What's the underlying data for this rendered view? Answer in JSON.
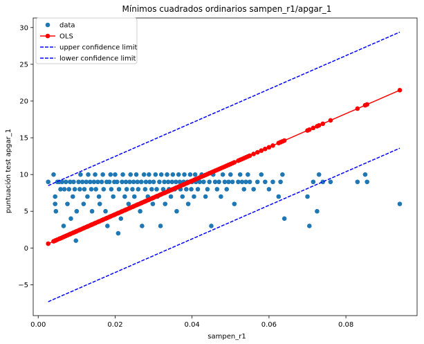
{
  "chart_data": {
    "type": "scatter",
    "title": "Mínimos cuadrados ordinarios sampen_r1/apgar_1",
    "xlabel": "sampen_r1",
    "ylabel": "puntuación test apgar_1",
    "xlim": [
      -0.0013,
      0.0985
    ],
    "ylim": [
      -9.2,
      31.3
    ],
    "xticks": [
      0.0,
      0.02,
      0.04,
      0.06,
      0.08
    ],
    "xtick_labels": [
      "0.00",
      "0.02",
      "0.04",
      "0.06",
      "0.08"
    ],
    "yticks": [
      -5,
      0,
      5,
      10,
      15,
      20,
      25,
      30
    ],
    "ytick_labels": [
      "−5",
      "0",
      "5",
      "10",
      "15",
      "20",
      "25",
      "30"
    ],
    "legend_position": "top-left",
    "series": [
      {
        "name": "data",
        "kind": "scatter",
        "color": "#1f77b4",
        "points": [
          [
            0.0026,
            9
          ],
          [
            0.004,
            10
          ],
          [
            0.0044,
            7
          ],
          [
            0.0044,
            6
          ],
          [
            0.0046,
            5
          ],
          [
            0.005,
            9
          ],
          [
            0.0055,
            9
          ],
          [
            0.0058,
            8
          ],
          [
            0.0062,
            9
          ],
          [
            0.0066,
            3
          ],
          [
            0.0068,
            8
          ],
          [
            0.0072,
            9
          ],
          [
            0.0076,
            6
          ],
          [
            0.008,
            8
          ],
          [
            0.0083,
            9
          ],
          [
            0.0085,
            4
          ],
          [
            0.009,
            7
          ],
          [
            0.0092,
            9
          ],
          [
            0.0095,
            8
          ],
          [
            0.0098,
            1
          ],
          [
            0.01,
            5
          ],
          [
            0.0105,
            9
          ],
          [
            0.0108,
            8
          ],
          [
            0.011,
            10
          ],
          [
            0.0115,
            9
          ],
          [
            0.0118,
            6
          ],
          [
            0.012,
            8
          ],
          [
            0.0125,
            9
          ],
          [
            0.0128,
            7
          ],
          [
            0.013,
            10
          ],
          [
            0.0135,
            9
          ],
          [
            0.0138,
            8
          ],
          [
            0.014,
            5
          ],
          [
            0.0145,
            9
          ],
          [
            0.0148,
            10
          ],
          [
            0.015,
            8
          ],
          [
            0.0155,
            9
          ],
          [
            0.0158,
            7
          ],
          [
            0.016,
            6
          ],
          [
            0.0165,
            9
          ],
          [
            0.0168,
            10
          ],
          [
            0.017,
            8
          ],
          [
            0.0175,
            5
          ],
          [
            0.0178,
            9
          ],
          [
            0.018,
            3
          ],
          [
            0.0185,
            9
          ],
          [
            0.0188,
            10
          ],
          [
            0.019,
            8
          ],
          [
            0.0195,
            7
          ],
          [
            0.0198,
            9
          ],
          [
            0.02,
            10
          ],
          [
            0.0205,
            9
          ],
          [
            0.0208,
            2
          ],
          [
            0.021,
            8
          ],
          [
            0.0215,
            4
          ],
          [
            0.0218,
            9
          ],
          [
            0.022,
            10
          ],
          [
            0.0225,
            7
          ],
          [
            0.0228,
            9
          ],
          [
            0.023,
            8
          ],
          [
            0.0235,
            6
          ],
          [
            0.0238,
            9
          ],
          [
            0.024,
            10
          ],
          [
            0.0245,
            8
          ],
          [
            0.0248,
            9
          ],
          [
            0.025,
            7
          ],
          [
            0.0255,
            10
          ],
          [
            0.0258,
            9
          ],
          [
            0.026,
            8
          ],
          [
            0.0265,
            5
          ],
          [
            0.0268,
            9
          ],
          [
            0.027,
            3
          ],
          [
            0.0275,
            10
          ],
          [
            0.0278,
            8
          ],
          [
            0.028,
            9
          ],
          [
            0.0285,
            7
          ],
          [
            0.0288,
            10
          ],
          [
            0.029,
            9
          ],
          [
            0.0295,
            8
          ],
          [
            0.0298,
            6
          ],
          [
            0.03,
            9
          ],
          [
            0.0305,
            10
          ],
          [
            0.0308,
            8
          ],
          [
            0.031,
            7
          ],
          [
            0.0315,
            9
          ],
          [
            0.0318,
            3
          ],
          [
            0.032,
            10
          ],
          [
            0.0325,
            8
          ],
          [
            0.0328,
            9
          ],
          [
            0.033,
            6
          ],
          [
            0.0335,
            10
          ],
          [
            0.0338,
            9
          ],
          [
            0.034,
            8
          ],
          [
            0.0345,
            7
          ],
          [
            0.0348,
            9
          ],
          [
            0.035,
            10
          ],
          [
            0.0355,
            8
          ],
          [
            0.0358,
            9
          ],
          [
            0.036,
            5
          ],
          [
            0.0365,
            10
          ],
          [
            0.0368,
            9
          ],
          [
            0.037,
            8
          ],
          [
            0.0375,
            7
          ],
          [
            0.0378,
            9
          ],
          [
            0.038,
            10
          ],
          [
            0.0385,
            8
          ],
          [
            0.0388,
            9
          ],
          [
            0.039,
            6
          ],
          [
            0.0395,
            10
          ],
          [
            0.0398,
            8
          ],
          [
            0.04,
            9
          ],
          [
            0.0405,
            7
          ],
          [
            0.0408,
            10
          ],
          [
            0.041,
            9
          ],
          [
            0.0415,
            8
          ],
          [
            0.042,
            9
          ],
          [
            0.0425,
            10
          ],
          [
            0.043,
            9
          ],
          [
            0.0435,
            7
          ],
          [
            0.044,
            8
          ],
          [
            0.0445,
            9
          ],
          [
            0.045,
            3
          ],
          [
            0.0455,
            10
          ],
          [
            0.046,
            9
          ],
          [
            0.0465,
            8
          ],
          [
            0.047,
            9
          ],
          [
            0.0475,
            7
          ],
          [
            0.048,
            10
          ],
          [
            0.0485,
            9
          ],
          [
            0.049,
            8
          ],
          [
            0.0495,
            9
          ],
          [
            0.05,
            10
          ],
          [
            0.0505,
            9
          ],
          [
            0.051,
            6
          ],
          [
            0.052,
            9
          ],
          [
            0.0525,
            10
          ],
          [
            0.053,
            9
          ],
          [
            0.0535,
            8
          ],
          [
            0.054,
            9
          ],
          [
            0.0545,
            10
          ],
          [
            0.055,
            9
          ],
          [
            0.056,
            8
          ],
          [
            0.057,
            9
          ],
          [
            0.058,
            10
          ],
          [
            0.059,
            9
          ],
          [
            0.06,
            8
          ],
          [
            0.061,
            9
          ],
          [
            0.0625,
            7
          ],
          [
            0.063,
            9
          ],
          [
            0.0635,
            10
          ],
          [
            0.064,
            4
          ],
          [
            0.07,
            7
          ],
          [
            0.0705,
            3
          ],
          [
            0.0715,
            9
          ],
          [
            0.0725,
            5
          ],
          [
            0.073,
            10
          ],
          [
            0.074,
            9
          ],
          [
            0.076,
            9
          ],
          [
            0.083,
            9
          ],
          [
            0.085,
            10
          ],
          [
            0.0855,
            9
          ],
          [
            0.094,
            6
          ]
        ]
      },
      {
        "name": "OLS",
        "kind": "line-marker",
        "color": "#ff0000",
        "intercept": 0.0,
        "slope": 228.5,
        "x_range": [
          0.0026,
          0.094
        ]
      },
      {
        "name": "upper confidence limit",
        "kind": "dashed",
        "color": "#0000ff",
        "intercept": 7.9,
        "slope": 228.5,
        "x_range": [
          0.0026,
          0.094
        ]
      },
      {
        "name": "lower confidence limit",
        "kind": "dashed",
        "color": "#0000ff",
        "intercept": -7.9,
        "slope": 228.5,
        "x_range": [
          0.0026,
          0.094
        ]
      }
    ]
  }
}
